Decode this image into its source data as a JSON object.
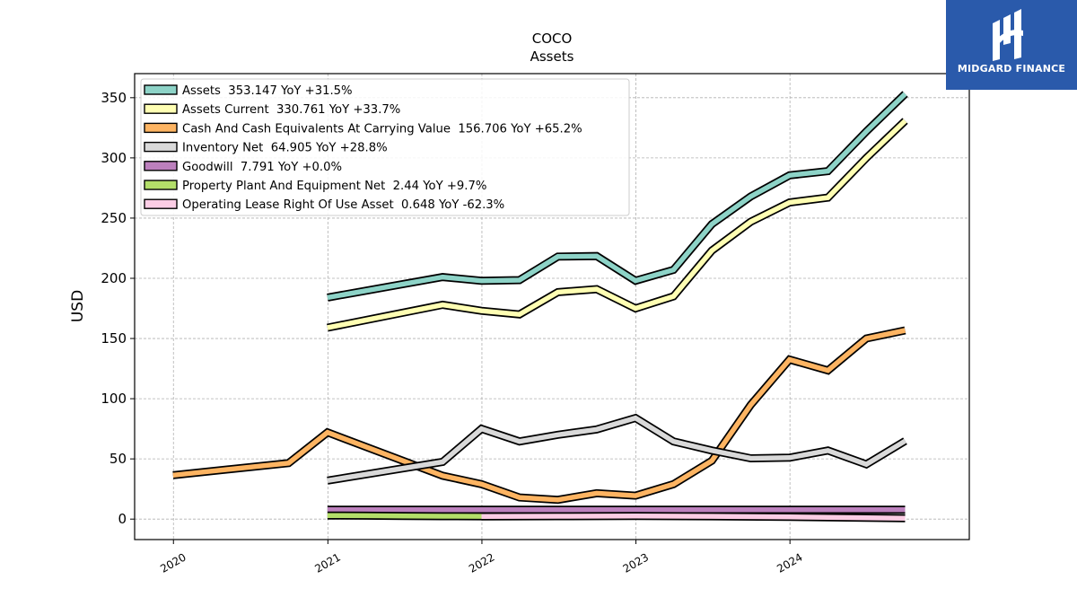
{
  "logo": {
    "text": "MIDGARD FINANCE",
    "background": "#2a5aab"
  },
  "chart_data": {
    "type": "line",
    "title": "COCO",
    "subtitle": "Assets",
    "xlabel": "",
    "ylabel": "USD",
    "x_ticks": [
      "2020",
      "2021",
      "2022",
      "2023",
      "2024"
    ],
    "xlim": [
      "2019-10-01",
      "2025-03-01"
    ],
    "y_ticks": [
      0,
      50,
      100,
      150,
      200,
      250,
      300,
      350
    ],
    "ylim": [
      -17,
      370
    ],
    "grid": true,
    "legend_position": "upper-left",
    "series": [
      {
        "name": "Assets  353.147 YoY +31.5%",
        "color": "#8dd3c7",
        "points": [
          [
            "2020-12-31",
            184
          ],
          [
            "2021-09-30",
            201
          ],
          [
            "2021-12-31",
            198
          ],
          [
            "2022-03-31",
            198.5
          ],
          [
            "2022-06-30",
            218
          ],
          [
            "2022-09-30",
            218.5
          ],
          [
            "2022-12-31",
            198
          ],
          [
            "2023-03-31",
            207
          ],
          [
            "2023-06-30",
            245
          ],
          [
            "2023-09-30",
            268
          ],
          [
            "2023-12-31",
            285.5
          ],
          [
            "2024-03-31",
            289
          ],
          [
            "2024-06-30",
            322
          ],
          [
            "2024-09-30",
            353.147
          ]
        ]
      },
      {
        "name": "Assets Current  330.761 YoY +33.7%",
        "color": "#ffffb3",
        "points": [
          [
            "2020-12-31",
            159
          ],
          [
            "2021-09-30",
            178
          ],
          [
            "2021-12-31",
            173
          ],
          [
            "2022-03-31",
            170
          ],
          [
            "2022-06-30",
            188.5
          ],
          [
            "2022-09-30",
            191
          ],
          [
            "2022-12-31",
            175
          ],
          [
            "2023-03-31",
            185
          ],
          [
            "2023-06-30",
            223
          ],
          [
            "2023-09-30",
            247
          ],
          [
            "2023-12-31",
            263
          ],
          [
            "2024-03-31",
            267
          ],
          [
            "2024-06-30",
            300
          ],
          [
            "2024-09-30",
            330.761
          ]
        ]
      },
      {
        "name": "Cash And Cash Equivalents At Carrying Value  156.706 YoY +65.2%",
        "color": "#fdb462",
        "points": [
          [
            "2019-12-31",
            36.5
          ],
          [
            "2020-09-30",
            46.5
          ],
          [
            "2020-12-31",
            72
          ],
          [
            "2021-09-30",
            36
          ],
          [
            "2021-12-31",
            29
          ],
          [
            "2022-03-31",
            18
          ],
          [
            "2022-06-30",
            16
          ],
          [
            "2022-09-30",
            21.5
          ],
          [
            "2022-12-31",
            19.5
          ],
          [
            "2023-03-31",
            29
          ],
          [
            "2023-06-30",
            48.5
          ],
          [
            "2023-09-30",
            94.9
          ],
          [
            "2023-12-31",
            132.5
          ],
          [
            "2024-03-31",
            123.5
          ],
          [
            "2024-06-30",
            150
          ],
          [
            "2024-09-30",
            156.706
          ]
        ]
      },
      {
        "name": "Inventory Net  64.905 YoY +28.8%",
        "color": "#d9d9d9",
        "points": [
          [
            "2020-12-31",
            32
          ],
          [
            "2021-09-30",
            47.5
          ],
          [
            "2021-12-31",
            75
          ],
          [
            "2022-03-31",
            64.5
          ],
          [
            "2022-06-30",
            70
          ],
          [
            "2022-09-30",
            74.5
          ],
          [
            "2022-12-31",
            84
          ],
          [
            "2023-03-31",
            64.5
          ],
          [
            "2023-06-30",
            57
          ],
          [
            "2023-09-30",
            50.5
          ],
          [
            "2023-12-31",
            51
          ],
          [
            "2024-03-31",
            57
          ],
          [
            "2024-06-30",
            45.5
          ],
          [
            "2024-09-30",
            64.905
          ]
        ]
      },
      {
        "name": "Goodwill  7.791 YoY +0.0%",
        "color": "#bc80bd",
        "points": [
          [
            "2020-12-31",
            7.791
          ],
          [
            "2024-09-30",
            7.791
          ]
        ]
      },
      {
        "name": "Property Plant And Equipment Net  2.44 YoY +9.7%",
        "color": "#b3de69",
        "points": [
          [
            "2020-12-31",
            3.0
          ],
          [
            "2021-03-31",
            2.8
          ],
          [
            "2021-06-30",
            2.6
          ],
          [
            "2021-09-30",
            2.4
          ],
          [
            "2021-12-31",
            2.3
          ]
        ]
      },
      {
        "name": "Operating Lease Right Of Use Asset  0.648 YoY -62.3%",
        "color": "#fccde5",
        "points": [
          [
            "2021-12-31",
            2.2
          ],
          [
            "2022-06-30",
            2.4
          ],
          [
            "2022-12-31",
            2.5
          ],
          [
            "2023-06-30",
            2.3
          ],
          [
            "2023-12-31",
            1.8
          ],
          [
            "2024-03-31",
            1.5
          ],
          [
            "2024-06-30",
            1.1
          ],
          [
            "2024-09-30",
            0.648
          ]
        ]
      }
    ]
  }
}
